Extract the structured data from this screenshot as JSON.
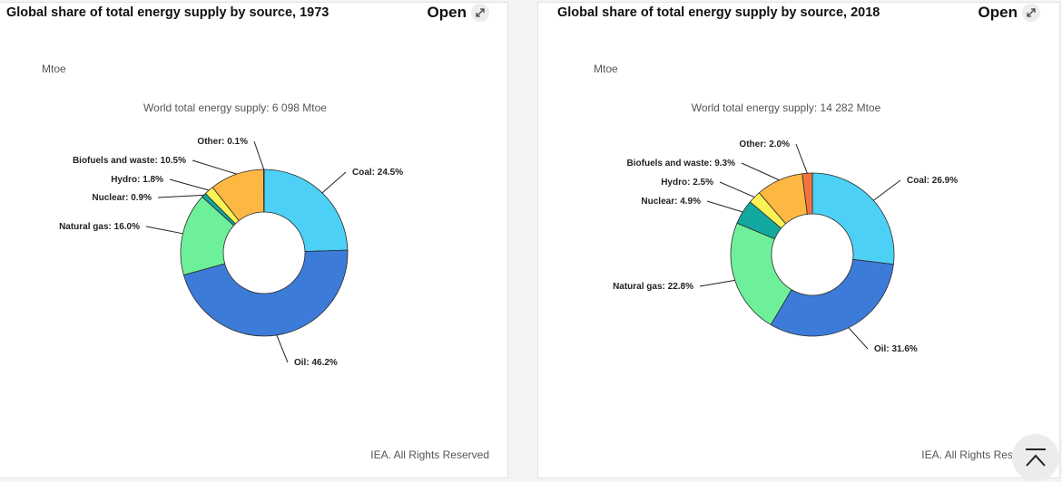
{
  "charts": [
    {
      "title": "Global share of total energy supply by source, 1973",
      "open_label": "Open",
      "unit": "Mtoe",
      "subtitle": "World total energy supply: 6 098 Mtoe",
      "credit": "IEA. All Rights Reserved"
    },
    {
      "title": "Global share of total energy supply by source, 2018",
      "open_label": "Open",
      "unit": "Mtoe",
      "subtitle": "World total energy supply: 14 282 Mtoe",
      "credit": "IEA. All Rights Reserved"
    }
  ],
  "chart_data": [
    {
      "type": "pie",
      "title": "Global share of total energy supply by source, 1973",
      "subtitle": "World total energy supply: 6 098 Mtoe",
      "unit": "Mtoe",
      "slices": [
        {
          "label": "Coal",
          "value": 24.5,
          "text": "Coal: 24.5%",
          "color": "#4dd0f5"
        },
        {
          "label": "Oil",
          "value": 46.2,
          "text": "Oil: 46.2%",
          "color": "#3d7bd8"
        },
        {
          "label": "Natural gas",
          "value": 16.0,
          "text": "Natural gas: 16.0%",
          "color": "#6ef09a"
        },
        {
          "label": "Nuclear",
          "value": 0.9,
          "text": "Nuclear: 0.9%",
          "color": "#12a9a0"
        },
        {
          "label": "Hydro",
          "value": 1.8,
          "text": "Hydro: 1.8%",
          "color": "#fbf356"
        },
        {
          "label": "Biofuels and waste",
          "value": 10.5,
          "text": "Biofuels and waste: 10.5%",
          "color": "#fdb844"
        },
        {
          "label": "Other",
          "value": 0.1,
          "text": "Other: 0.1%",
          "color": "#f3733e"
        }
      ]
    },
    {
      "type": "pie",
      "title": "Global share of total energy supply by source, 2018",
      "subtitle": "World total energy supply: 14 282 Mtoe",
      "unit": "Mtoe",
      "slices": [
        {
          "label": "Coal",
          "value": 26.9,
          "text": "Coal: 26.9%",
          "color": "#4dd0f5"
        },
        {
          "label": "Oil",
          "value": 31.6,
          "text": "Oil: 31.6%",
          "color": "#3d7bd8"
        },
        {
          "label": "Natural gas",
          "value": 22.8,
          "text": "Natural gas: 22.8%",
          "color": "#6ef09a"
        },
        {
          "label": "Nuclear",
          "value": 4.9,
          "text": "Nuclear: 4.9%",
          "color": "#12a9a0"
        },
        {
          "label": "Hydro",
          "value": 2.5,
          "text": "Hydro: 2.5%",
          "color": "#fbf356"
        },
        {
          "label": "Biofuels and waste",
          "value": 9.3,
          "text": "Biofuels and waste: 9.3%",
          "color": "#fdb844"
        },
        {
          "label": "Other",
          "value": 2.0,
          "text": "Other: 2.0%",
          "color": "#f3733e"
        }
      ]
    }
  ]
}
